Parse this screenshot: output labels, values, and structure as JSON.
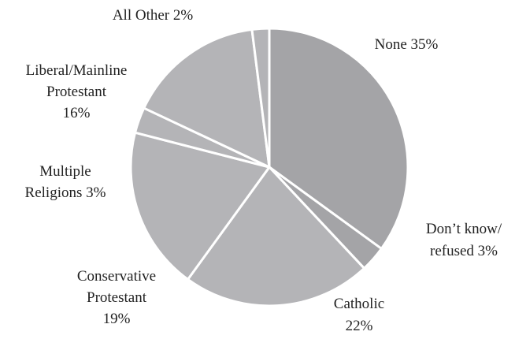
{
  "chart_data": {
    "type": "pie",
    "slices": [
      {
        "label": "None",
        "value": 35,
        "display": [
          "None 35%"
        ]
      },
      {
        "label": "Don’t know/refused",
        "value": 3,
        "display": [
          "Don’t know/",
          "refused  3%"
        ]
      },
      {
        "label": "Catholic",
        "value": 22,
        "display": [
          "Catholic",
          "22%"
        ]
      },
      {
        "label": "Conservative Protestant",
        "value": 19,
        "display": [
          "Conservative",
          "Protestant",
          "19%"
        ]
      },
      {
        "label": "Multiple Religions",
        "value": 3,
        "display": [
          "Multiple",
          "Religions 3%"
        ]
      },
      {
        "label": "Liberal/Mainline Protestant",
        "value": 16,
        "display": [
          "Liberal/Mainline",
          "Protestant",
          "16%"
        ]
      },
      {
        "label": "All Other",
        "value": 2,
        "display": [
          "All Other 2%"
        ]
      }
    ],
    "start": "12 o'clock, clockwise",
    "colors": {
      "dark": "#a4a4a7",
      "light": "#b4b4b7",
      "outline": "#ffffff",
      "text": "#222222"
    }
  }
}
